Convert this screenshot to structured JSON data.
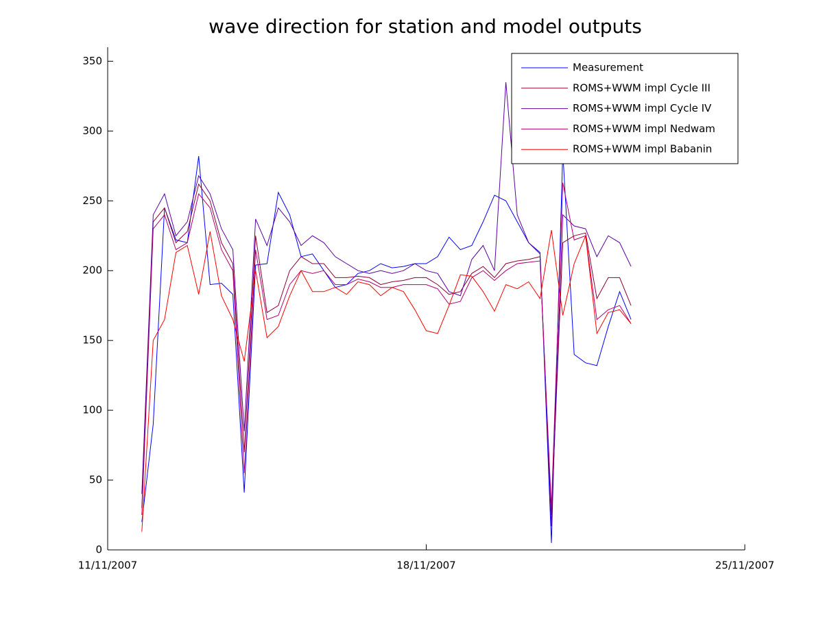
{
  "chart_data": {
    "type": "line",
    "title": "wave direction for station and model outputs",
    "x": [
      0.75,
      1,
      1.25,
      1.5,
      1.75,
      2,
      2.25,
      2.5,
      2.75,
      3,
      3.25,
      3.5,
      3.75,
      4,
      4.25,
      4.5,
      4.75,
      5,
      5.25,
      5.5,
      5.75,
      6,
      6.25,
      6.5,
      6.75,
      7,
      7.25,
      7.5,
      7.75,
      8,
      8.25,
      8.5,
      8.75,
      9,
      9.25,
      9.5,
      9.75,
      10,
      10.25,
      10.5,
      10.75,
      11,
      11.25,
      11.5
    ],
    "series": [
      {
        "name": "Measurement",
        "color": "#0000ff",
        "values": [
          20,
          90,
          245,
          222,
          220,
          282,
          190,
          191,
          183,
          41,
          204,
          205,
          256,
          240,
          210,
          212,
          200,
          188,
          190,
          198,
          200,
          205,
          202,
          203,
          205,
          205,
          210,
          224,
          215,
          218,
          235,
          254,
          250,
          235,
          220,
          213,
          5,
          285,
          140,
          134,
          132,
          160,
          185,
          165
        ]
      },
      {
        "name": "ROMS+WWM impl Cycle III",
        "color": "#8b0030",
        "values": [
          30,
          235,
          245,
          220,
          228,
          262,
          250,
          220,
          205,
          70,
          225,
          170,
          175,
          200,
          210,
          205,
          205,
          195,
          195,
          196,
          195,
          190,
          192,
          193,
          195,
          195,
          190,
          183,
          185,
          198,
          203,
          195,
          205,
          207,
          208,
          210,
          25,
          220,
          225,
          227,
          180,
          195,
          195,
          175
        ]
      },
      {
        "name": "ROMS+WWM impl Cycle IV",
        "color": "#5a00a0",
        "values": [
          40,
          240,
          255,
          225,
          235,
          268,
          255,
          230,
          215,
          85,
          237,
          218,
          245,
          235,
          218,
          225,
          220,
          210,
          205,
          200,
          198,
          200,
          198,
          200,
          205,
          200,
          198,
          185,
          182,
          208,
          218,
          200,
          335,
          240,
          220,
          212,
          17,
          240,
          232,
          230,
          210,
          225,
          220,
          203
        ]
      },
      {
        "name": "ROMS+WWM impl Nedwam",
        "color": "#b00070",
        "values": [
          25,
          230,
          240,
          215,
          220,
          255,
          245,
          215,
          200,
          55,
          215,
          165,
          168,
          190,
          200,
          198,
          200,
          190,
          190,
          194,
          192,
          188,
          188,
          190,
          190,
          190,
          187,
          176,
          178,
          195,
          200,
          193,
          200,
          205,
          206,
          207,
          30,
          263,
          222,
          225,
          165,
          172,
          175,
          162
        ]
      },
      {
        "name": "ROMS+WWM impl Babanin",
        "color": "#ff0000",
        "values": [
          13,
          150,
          165,
          213,
          218,
          183,
          228,
          182,
          165,
          135,
          200,
          152,
          160,
          182,
          200,
          185,
          185,
          188,
          183,
          192,
          190,
          182,
          188,
          185,
          172,
          157,
          155,
          175,
          197,
          196,
          185,
          171,
          190,
          187,
          192,
          180,
          229,
          168,
          205,
          225,
          155,
          170,
          172,
          162
        ]
      }
    ],
    "xlim": [
      0,
      14
    ],
    "xticks": [
      {
        "value": 0,
        "label": "11/11/2007"
      },
      {
        "value": 7,
        "label": "18/11/2007"
      },
      {
        "value": 14,
        "label": "25/11/2007"
      }
    ],
    "ylim": [
      0,
      360
    ],
    "yticks": [
      0,
      50,
      100,
      150,
      200,
      250,
      300,
      350
    ],
    "legend": "upper right"
  }
}
